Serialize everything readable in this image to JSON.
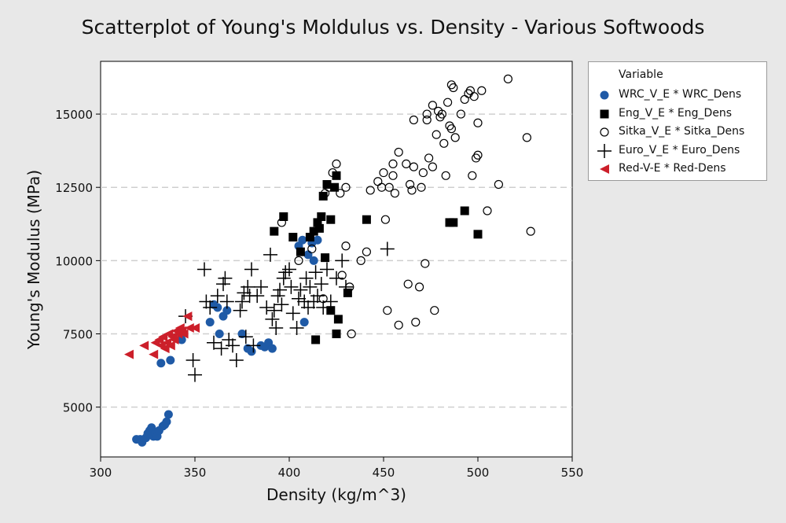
{
  "chart_data": {
    "type": "scatter",
    "title": "Scatterplot of Young's Moldulus vs. Density - Various Softwoods",
    "xlabel": "Density (kg/m^3)",
    "ylabel": "Young's Modulus (MPa)",
    "xlim": [
      300,
      550
    ],
    "ylim": [
      3300,
      16800
    ],
    "xticks": [
      300,
      350,
      400,
      450,
      500,
      550
    ],
    "yticks": [
      5000,
      7500,
      10000,
      12500,
      15000
    ],
    "grid": "horizontal dashed",
    "legend_title": "Variable",
    "legend_position": "right",
    "series": [
      {
        "name": "WRC_V_E * WRC_Dens",
        "marker": "filled-circle",
        "color": "#1f5aa6",
        "points": [
          [
            319,
            3900
          ],
          [
            321,
            3900
          ],
          [
            322,
            3800
          ],
          [
            324,
            3950
          ],
          [
            325,
            4100
          ],
          [
            326,
            4200
          ],
          [
            327,
            4300
          ],
          [
            328,
            4000
          ],
          [
            329,
            4100
          ],
          [
            330,
            4000
          ],
          [
            331,
            4200
          ],
          [
            333,
            4350
          ],
          [
            334,
            4400
          ],
          [
            335,
            4500
          ],
          [
            336,
            4750
          ],
          [
            332,
            6500
          ],
          [
            337,
            6600
          ],
          [
            343,
            7300
          ],
          [
            358,
            7900
          ],
          [
            360,
            8500
          ],
          [
            362,
            8400
          ],
          [
            363,
            7500
          ],
          [
            365,
            8100
          ],
          [
            367,
            8300
          ],
          [
            375,
            7500
          ],
          [
            378,
            7000
          ],
          [
            380,
            6900
          ],
          [
            385,
            7100
          ],
          [
            387,
            7050
          ],
          [
            389,
            7200
          ],
          [
            391,
            7000
          ],
          [
            405,
            10500
          ],
          [
            407,
            10700
          ],
          [
            410,
            10200
          ],
          [
            412,
            10600
          ],
          [
            413,
            10000
          ],
          [
            415,
            10700
          ],
          [
            408,
            7900
          ]
        ]
      },
      {
        "name": "Eng_V_E * Eng_Dens",
        "marker": "filled-square",
        "color": "#000000",
        "points": [
          [
            392,
            11000
          ],
          [
            397,
            11500
          ],
          [
            402,
            10800
          ],
          [
            406,
            10300
          ],
          [
            411,
            10800
          ],
          [
            413,
            11000
          ],
          [
            415,
            11300
          ],
          [
            416,
            11100
          ],
          [
            417,
            11500
          ],
          [
            418,
            12200
          ],
          [
            419,
            10100
          ],
          [
            420,
            12600
          ],
          [
            422,
            11400
          ],
          [
            422,
            8300
          ],
          [
            424,
            12500
          ],
          [
            425,
            12900
          ],
          [
            425,
            7500
          ],
          [
            426,
            8000
          ],
          [
            431,
            8900
          ],
          [
            414,
            7300
          ],
          [
            441,
            11400
          ],
          [
            485,
            11300
          ],
          [
            487,
            11300
          ],
          [
            493,
            11700
          ],
          [
            500,
            10900
          ]
        ]
      },
      {
        "name": "Sitka_V_E * Sitka_Dens",
        "marker": "open-circle",
        "color": "#000000",
        "points": [
          [
            396,
            11300
          ],
          [
            405,
            10000
          ],
          [
            412,
            10400
          ],
          [
            418,
            8700
          ],
          [
            419,
            12300
          ],
          [
            421,
            12500
          ],
          [
            423,
            13000
          ],
          [
            425,
            13300
          ],
          [
            427,
            12300
          ],
          [
            428,
            9500
          ],
          [
            430,
            10500
          ],
          [
            430,
            12500
          ],
          [
            432,
            9100
          ],
          [
            433,
            7500
          ],
          [
            438,
            10000
          ],
          [
            441,
            10300
          ],
          [
            443,
            12400
          ],
          [
            447,
            12700
          ],
          [
            449,
            12500
          ],
          [
            450,
            13000
          ],
          [
            451,
            11400
          ],
          [
            452,
            8300
          ],
          [
            453,
            12500
          ],
          [
            455,
            12900
          ],
          [
            455,
            13300
          ],
          [
            456,
            12300
          ],
          [
            458,
            13700
          ],
          [
            458,
            7800
          ],
          [
            462,
            13300
          ],
          [
            463,
            9200
          ],
          [
            464,
            12600
          ],
          [
            465,
            12400
          ],
          [
            466,
            13200
          ],
          [
            466,
            14800
          ],
          [
            467,
            7900
          ],
          [
            469,
            9100
          ],
          [
            470,
            12500
          ],
          [
            472,
            9900
          ],
          [
            473,
            14800
          ],
          [
            474,
            13500
          ],
          [
            476,
            13200
          ],
          [
            476,
            15300
          ],
          [
            477,
            8300
          ],
          [
            478,
            14300
          ],
          [
            480,
            14900
          ],
          [
            481,
            15000
          ],
          [
            482,
            14000
          ],
          [
            483,
            12900
          ],
          [
            484,
            15400
          ],
          [
            485,
            14600
          ],
          [
            486,
            14500
          ],
          [
            486,
            16000
          ],
          [
            488,
            14200
          ],
          [
            491,
            15000
          ],
          [
            493,
            15500
          ],
          [
            495,
            15700
          ],
          [
            496,
            15800
          ],
          [
            497,
            12900
          ],
          [
            498,
            15600
          ],
          [
            499,
            13500
          ],
          [
            500,
            13600
          ],
          [
            500,
            14700
          ],
          [
            502,
            15800
          ],
          [
            505,
            11700
          ],
          [
            511,
            12600
          ],
          [
            516,
            16200
          ],
          [
            526,
            14200
          ],
          [
            528,
            11000
          ],
          [
            473,
            15000
          ],
          [
            479,
            15100
          ],
          [
            487,
            15900
          ],
          [
            471,
            13000
          ]
        ]
      },
      {
        "name": "Euro_V_E * Euro_Dens",
        "marker": "plus",
        "color": "#000000",
        "points": [
          [
            345,
            8100
          ],
          [
            349,
            6600
          ],
          [
            350,
            6100
          ],
          [
            355,
            9700
          ],
          [
            356,
            8600
          ],
          [
            358,
            8400
          ],
          [
            360,
            7200
          ],
          [
            362,
            8800
          ],
          [
            364,
            7000
          ],
          [
            365,
            9200
          ],
          [
            366,
            9400
          ],
          [
            367,
            8600
          ],
          [
            368,
            7300
          ],
          [
            370,
            7100
          ],
          [
            372,
            6600
          ],
          [
            374,
            8300
          ],
          [
            375,
            8600
          ],
          [
            376,
            8900
          ],
          [
            377,
            7400
          ],
          [
            378,
            9100
          ],
          [
            379,
            8800
          ],
          [
            380,
            9700
          ],
          [
            381,
            7100
          ],
          [
            383,
            8800
          ],
          [
            385,
            9100
          ],
          [
            388,
            8400
          ],
          [
            390,
            10200
          ],
          [
            391,
            8000
          ],
          [
            392,
            8300
          ],
          [
            393,
            7700
          ],
          [
            394,
            8800
          ],
          [
            395,
            9000
          ],
          [
            396,
            8500
          ],
          [
            397,
            9400
          ],
          [
            398,
            9600
          ],
          [
            400,
            9700
          ],
          [
            401,
            9100
          ],
          [
            402,
            8200
          ],
          [
            404,
            7700
          ],
          [
            405,
            8700
          ],
          [
            406,
            9000
          ],
          [
            408,
            8600
          ],
          [
            409,
            9400
          ],
          [
            410,
            8400
          ],
          [
            411,
            9100
          ],
          [
            413,
            8600
          ],
          [
            414,
            9600
          ],
          [
            415,
            8800
          ],
          [
            417,
            9200
          ],
          [
            418,
            8400
          ],
          [
            420,
            9700
          ],
          [
            422,
            8600
          ],
          [
            425,
            9400
          ],
          [
            428,
            10000
          ],
          [
            430,
            9100
          ],
          [
            452,
            10400
          ]
        ]
      },
      {
        "name": "Red-V-E * Red-Dens",
        "marker": "left-triangle",
        "color": "#cc1f2a",
        "points": [
          [
            315,
            6800
          ],
          [
            323,
            7100
          ],
          [
            328,
            6800
          ],
          [
            329,
            7200
          ],
          [
            331,
            7300
          ],
          [
            332,
            7100
          ],
          [
            333,
            7400
          ],
          [
            334,
            7000
          ],
          [
            335,
            7200
          ],
          [
            336,
            7500
          ],
          [
            337,
            7100
          ],
          [
            338,
            7400
          ],
          [
            339,
            7300
          ],
          [
            340,
            7600
          ],
          [
            341,
            7500
          ],
          [
            342,
            7700
          ],
          [
            343,
            7600
          ],
          [
            344,
            7500
          ],
          [
            346,
            8100
          ],
          [
            347,
            7700
          ],
          [
            350,
            7700
          ]
        ]
      }
    ]
  }
}
